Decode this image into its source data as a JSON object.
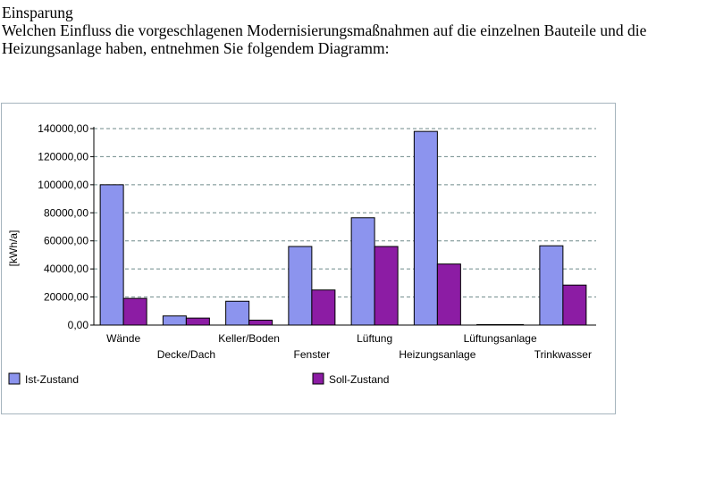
{
  "page": {
    "title": "Einsparung",
    "intro": "Welchen Einfluss die vorgeschlagenen Modernisierungsmaßnahmen auf die einzelnen Bauteile und die Heizungsanlage haben, entnehmen Sie folgendem Diagramm:"
  },
  "chart_data": {
    "type": "bar",
    "ylabel": "[kWh/a]",
    "ylim": [
      0,
      140000
    ],
    "yticks": [
      0,
      20000,
      40000,
      60000,
      80000,
      100000,
      120000,
      140000
    ],
    "ytick_labels": [
      "0,00",
      "20000,00",
      "40000,00",
      "60000,00",
      "80000,00",
      "100000,00",
      "120000,00",
      "140000,00"
    ],
    "grid": "horizontal dashed",
    "legend_position": "bottom",
    "categories": [
      "Wände",
      "Decke/Dach",
      "Keller/Boden",
      "Fenster",
      "Lüftung",
      "Heizungsanlage",
      "Lüftungsanlage",
      "Trinkwasser"
    ],
    "series": [
      {
        "name": "Ist-Zustand",
        "color": "#8c94ee",
        "values": [
          100000,
          6500,
          17000,
          56000,
          76500,
          138000,
          0,
          56500
        ]
      },
      {
        "name": "Soll-Zustand",
        "color": "#8c1ca4",
        "values": [
          19000,
          5000,
          3500,
          25000,
          56000,
          43500,
          0,
          28500
        ]
      }
    ]
  }
}
